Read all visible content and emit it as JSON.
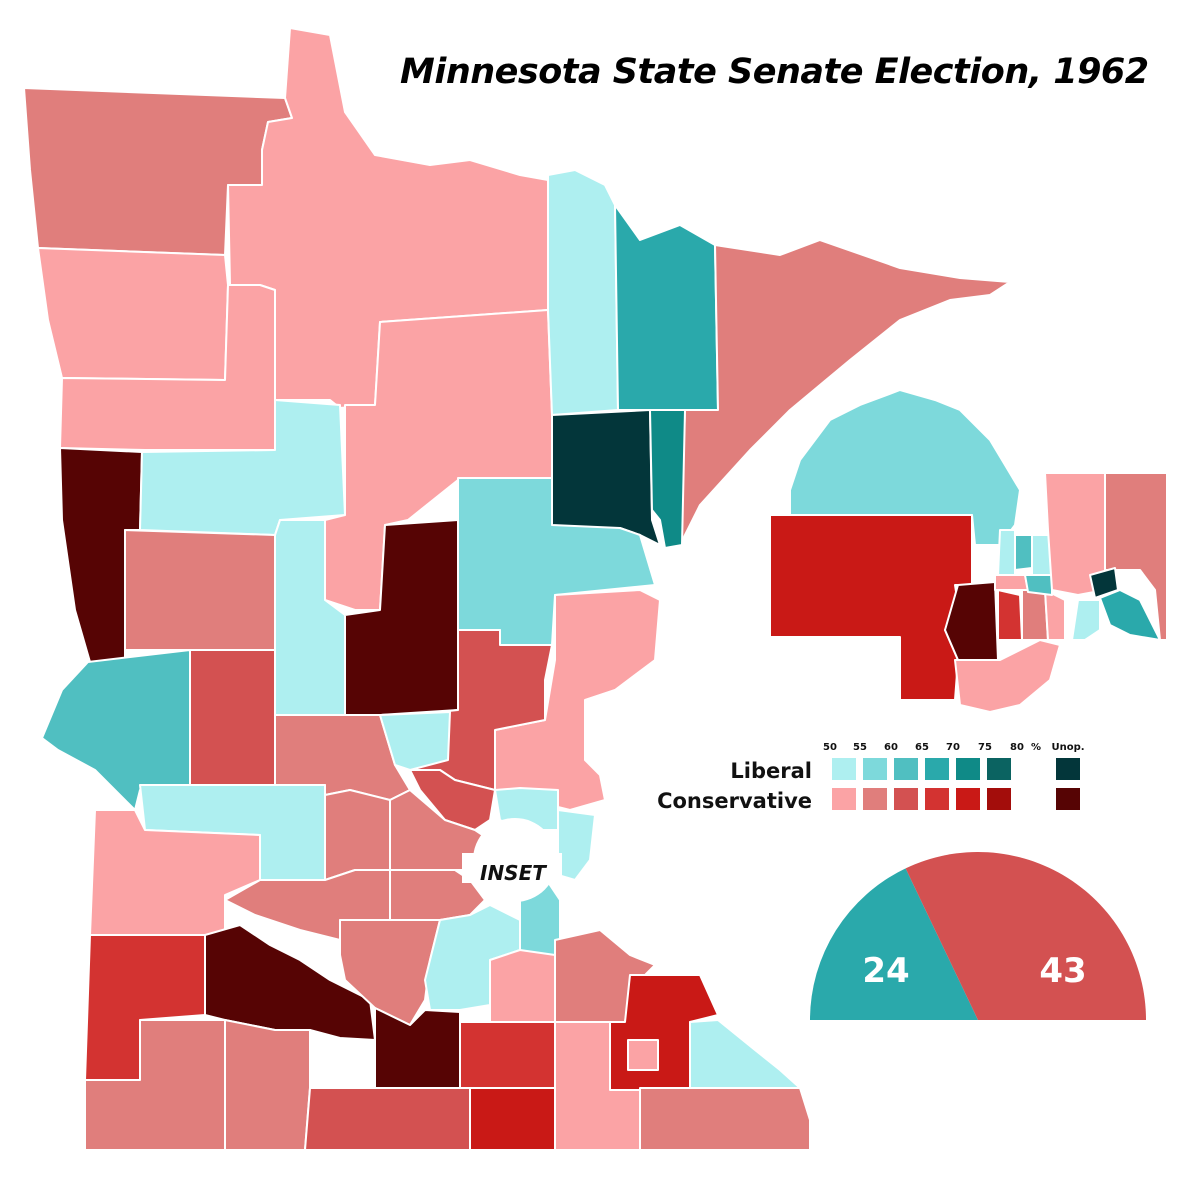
{
  "title": "Minnesota State Senate Election, 1962",
  "inset_label": "INSET",
  "legend": {
    "thresholds": [
      "50",
      "55",
      "60",
      "65",
      "70",
      "75",
      "80"
    ],
    "percent_sign": "%",
    "unopposed_label": "Unop.",
    "rows": [
      {
        "label": "Liberal",
        "colors": [
          "#aeeff0",
          "#7dd9db",
          "#50bfc1",
          "#2aa9ab",
          "#0f8a87",
          "#0b6361"
        ],
        "unopposed": "#03363a"
      },
      {
        "label": "Conservative",
        "colors": [
          "#fba3a5",
          "#e07e7c",
          "#d35151",
          "#d33331",
          "#c91916",
          "#a30d0b"
        ],
        "unopposed": "#560404"
      }
    ]
  },
  "seats": {
    "liberal": {
      "label": "24",
      "value": 24,
      "color": "#2aa9ab"
    },
    "conservative": {
      "label": "43",
      "value": 43,
      "color": "#d35151"
    }
  }
}
